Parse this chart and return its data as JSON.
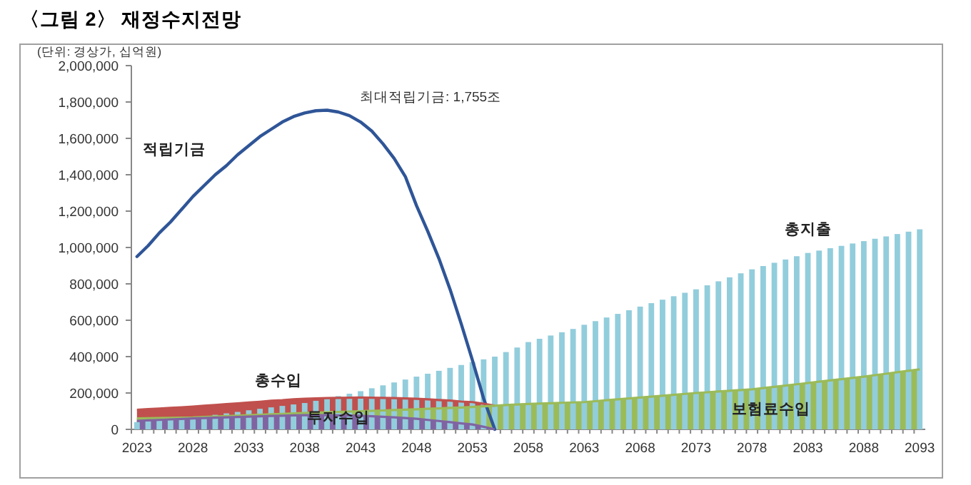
{
  "chart_data": {
    "type": "bar",
    "title": "〈그림 2〉 재정수지전망",
    "annotations": [
      "(단위: 경상가, 십억원)",
      "최대적립기금: 1,755조"
    ],
    "categories": [
      "2023",
      null,
      null,
      null,
      null,
      "2028",
      null,
      null,
      null,
      null,
      "2033",
      null,
      null,
      null,
      null,
      "2038",
      null,
      null,
      null,
      null,
      "2043",
      null,
      null,
      null,
      null,
      "2048",
      null,
      null,
      null,
      null,
      "2053",
      null,
      null,
      null,
      null,
      "2058",
      null,
      null,
      null,
      null,
      "2063",
      null,
      null,
      null,
      null,
      "2068",
      null,
      null,
      null,
      null,
      "2073",
      null,
      null,
      null,
      null,
      "2078",
      null,
      null,
      null,
      null,
      "2083",
      null,
      null,
      null,
      null,
      "2088",
      null,
      null,
      null,
      null,
      "2093"
    ],
    "series": [
      {
        "name": "총수입",
        "type": "area",
        "color": "#c0504d",
        "values": [
          107000,
          111000,
          114000,
          118000,
          121000,
          125000,
          130000,
          134000,
          139000,
          143000,
          148000,
          152000,
          157000,
          160000,
          165000,
          168000,
          170000,
          172000,
          173000,
          174000,
          175000,
          174000,
          173000,
          172000,
          170000,
          168000,
          165000,
          161000,
          158000,
          153000,
          150000,
          141000,
          130000,
          null,
          null,
          null,
          null,
          null,
          null,
          null,
          null,
          null,
          null,
          null,
          null,
          null,
          null,
          null,
          null,
          null,
          null,
          null,
          null,
          null,
          null,
          null,
          null,
          null,
          null,
          null,
          null,
          null,
          null,
          null,
          null,
          null,
          null,
          null,
          null,
          null,
          null
        ]
      },
      {
        "name": "보험료수입",
        "type": "area",
        "color": "#9bbb59",
        "values": [
          60000,
          61000,
          62000,
          63000,
          64000,
          65000,
          68000,
          70000,
          73000,
          75000,
          78000,
          80000,
          83000,
          85000,
          88000,
          90000,
          92000,
          94000,
          96000,
          98000,
          100000,
          102000,
          104000,
          106000,
          108000,
          110000,
          113000,
          115000,
          118000,
          120000,
          123000,
          127000,
          130000,
          134000,
          137000,
          140000,
          142000,
          144000,
          146000,
          148000,
          150000,
          155000,
          160000,
          165000,
          170000,
          175000,
          180000,
          185000,
          190000,
          195000,
          200000,
          204000,
          208000,
          212000,
          216000,
          220000,
          227000,
          234000,
          241000,
          248000,
          255000,
          262000,
          269000,
          276000,
          283000,
          290000,
          298000,
          306000,
          314000,
          322000,
          330000
        ]
      },
      {
        "name": "투자수입",
        "type": "area",
        "color": "#8064a2",
        "values": [
          47000,
          50000,
          52000,
          55000,
          57000,
          60000,
          62000,
          64000,
          66000,
          68000,
          70000,
          72000,
          74000,
          75000,
          77000,
          78000,
          78000,
          78000,
          77000,
          76000,
          75000,
          72000,
          69000,
          66000,
          62000,
          58000,
          52000,
          46000,
          40000,
          33000,
          27000,
          14000,
          0,
          null,
          null,
          null,
          null,
          null,
          null,
          null,
          null,
          null,
          null,
          null,
          null,
          null,
          null,
          null,
          null,
          null,
          null,
          null,
          null,
          null,
          null,
          null,
          null,
          null,
          null,
          null,
          null,
          null,
          null,
          null,
          null,
          null,
          null,
          null,
          null,
          null,
          null
        ]
      },
      {
        "name": "총지출",
        "color": "#92cddc",
        "values": [
          40000,
          44000,
          48000,
          53000,
          59000,
          65000,
          72000,
          80000,
          88000,
          96000,
          105000,
          113000,
          121000,
          129000,
          137000,
          145000,
          157000,
          170000,
          183000,
          196000,
          210000,
          226000,
          242000,
          258000,
          274000,
          290000,
          306000,
          322000,
          338000,
          354000,
          370000,
          385000,
          400000,
          425000,
          450000,
          480000,
          498000,
          516000,
          534000,
          552000,
          575000,
          595000,
          615000,
          635000,
          655000,
          675000,
          694000,
          713000,
          732000,
          751000,
          770000,
          792000,
          814000,
          836000,
          858000,
          880000,
          898000,
          916000,
          934000,
          952000,
          970000,
          983000,
          996000,
          1009000,
          1022000,
          1035000,
          1048000,
          1061000,
          1074000,
          1087000,
          1100000
        ]
      },
      {
        "name": "적립기금",
        "type": "line",
        "color": "#2f5597",
        "values": [
          950000,
          1010000,
          1080000,
          1140000,
          1210000,
          1280000,
          1340000,
          1400000,
          1450000,
          1510000,
          1560000,
          1610000,
          1650000,
          1690000,
          1720000,
          1740000,
          1752000,
          1755000,
          1745000,
          1725000,
          1690000,
          1640000,
          1570000,
          1490000,
          1390000,
          1230000,
          1090000,
          940000,
          770000,
          580000,
          380000,
          170000,
          0,
          null,
          null,
          null,
          null,
          null,
          null,
          null,
          null,
          null,
          null,
          null,
          null,
          null,
          null,
          null,
          null,
          null,
          null,
          null,
          null,
          null,
          null,
          null,
          null,
          null,
          null,
          null,
          null,
          null,
          null,
          null,
          null,
          null,
          null,
          null,
          null,
          null,
          null
        ]
      }
    ],
    "ylim": [
      0,
      2000000
    ],
    "yticks": [
      {
        "value": 0,
        "label": "0"
      },
      {
        "value": 200000,
        "label": "200,000"
      },
      {
        "value": 400000,
        "label": "400,000"
      },
      {
        "value": 600000,
        "label": "600,000"
      },
      {
        "value": 800000,
        "label": "800,000"
      },
      {
        "value": 1000000,
        "label": "1,000,000"
      },
      {
        "value": 1200000,
        "label": "1,200,000"
      },
      {
        "value": 1400000,
        "label": "1,400,000"
      },
      {
        "value": 1600000,
        "label": "1,600,000"
      },
      {
        "value": 1800000,
        "label": "1,800,000"
      },
      {
        "value": 2000000,
        "label": "2,000,000"
      }
    ]
  }
}
